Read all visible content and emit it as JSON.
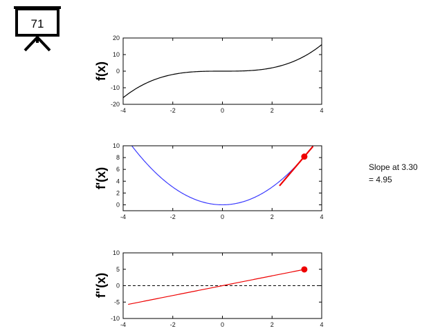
{
  "badge": {
    "number": "71",
    "icon": "presentation-board-icon"
  },
  "slope_note": {
    "line1": "Slope at 3.30",
    "line2": "= 4.95"
  },
  "colors": {
    "f": "#000000",
    "fprime": "#3a3aff",
    "accent": "#ee0000",
    "zero_line": "#000000"
  },
  "chart_data": [
    {
      "type": "line",
      "title": "",
      "xlabel": "",
      "ylabel": "f(x)",
      "xlim": [
        -4,
        4
      ],
      "ylim": [
        -20,
        20
      ],
      "xticks": [
        -4,
        -2,
        0,
        2,
        4
      ],
      "yticks": [
        -20,
        -10,
        0,
        10,
        20
      ],
      "series": [
        {
          "function": "x^3/4",
          "x_range": [
            -4,
            4
          ],
          "color": "#000000"
        }
      ]
    },
    {
      "type": "line",
      "title": "",
      "xlabel": "",
      "ylabel": "f'(x)",
      "xlim": [
        -4,
        4
      ],
      "ylim": [
        -1,
        10
      ],
      "xticks": [
        -4,
        -2,
        0,
        2,
        4
      ],
      "yticks": [
        0,
        2,
        4,
        6,
        8,
        10
      ],
      "series": [
        {
          "function": "0.75*x^2",
          "x_range": [
            -4,
            4
          ],
          "color": "#3a3aff"
        }
      ],
      "point": {
        "x": 3.3,
        "y": 8.17,
        "color": "#ee0000"
      },
      "tangent": {
        "x_range": [
          2.3,
          3.65
        ],
        "slope": 4.95,
        "through": [
          3.3,
          8.17
        ],
        "color": "#ee0000"
      }
    },
    {
      "type": "line",
      "title": "",
      "xlabel": "",
      "ylabel": "f''(x)",
      "xlim": [
        -4,
        4
      ],
      "ylim": [
        -10,
        10
      ],
      "xticks": [
        -4,
        -2,
        0,
        2,
        4
      ],
      "yticks": [
        -10,
        -5,
        0,
        5,
        10
      ],
      "series": [
        {
          "function": "1.5*x",
          "x_range": [
            -3.8,
            3.3
          ],
          "color": "#ee0000"
        }
      ],
      "point": {
        "x": 3.3,
        "y": 4.95,
        "color": "#ee0000"
      },
      "reference_line": {
        "y": 0,
        "style": "dashed"
      }
    }
  ]
}
